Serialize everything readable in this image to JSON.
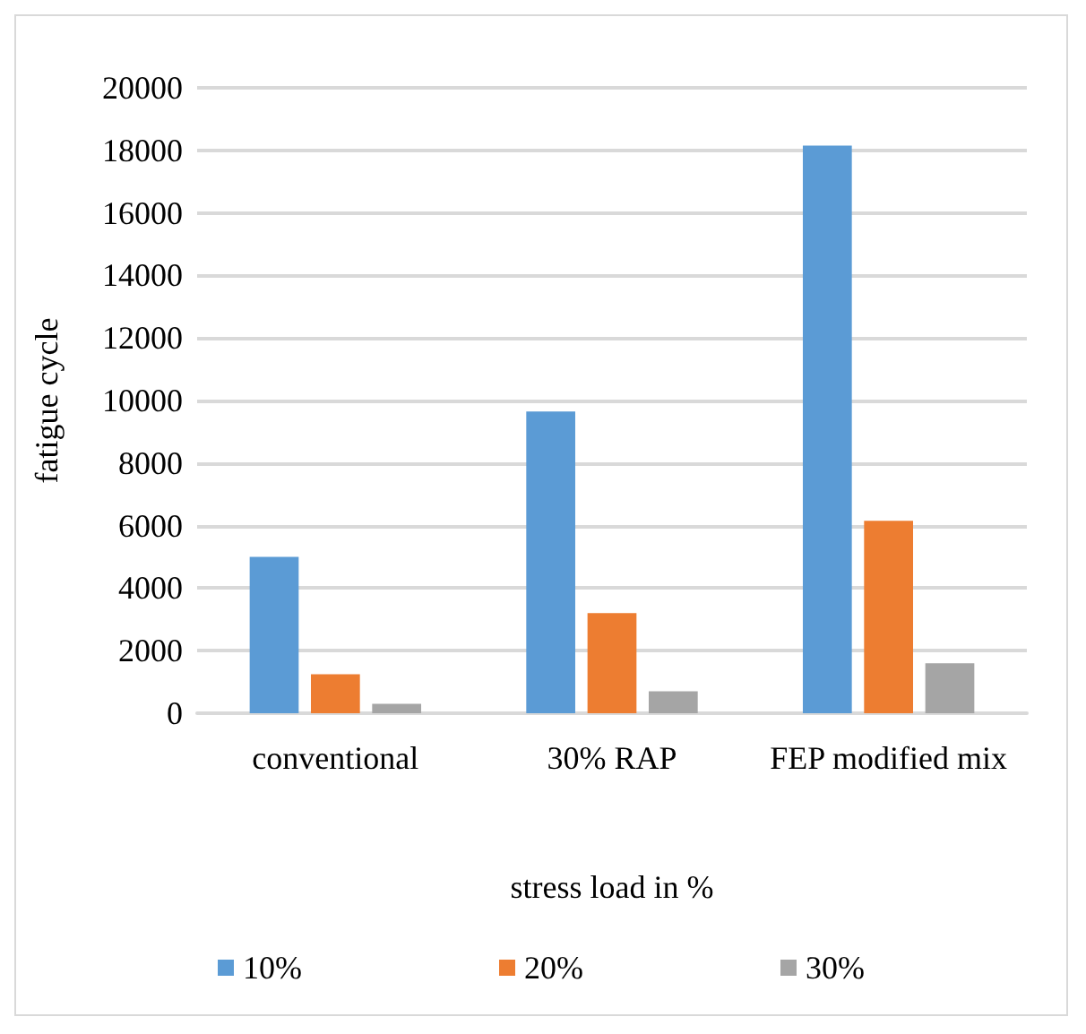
{
  "chart_data": {
    "type": "bar",
    "xlabel": "stress load in %",
    "ylabel": "fatigue cycle",
    "categories": [
      "conventional",
      "30% RAP",
      "FEP modified mix"
    ],
    "series": [
      {
        "name": "10%",
        "color": "#5b9bd5",
        "values": [
          5000,
          9650,
          18150
        ]
      },
      {
        "name": "20%",
        "color": "#ed7d31",
        "values": [
          1250,
          3200,
          6150
        ]
      },
      {
        "name": "30%",
        "color": "#a5a5a5",
        "values": [
          300,
          700,
          1600
        ]
      }
    ],
    "ylim": [
      0,
      20000
    ],
    "yticks": [
      0,
      2000,
      4000,
      6000,
      8000,
      10000,
      12000,
      14000,
      16000,
      18000,
      20000
    ],
    "grid": "y",
    "legend": "bottom"
  }
}
